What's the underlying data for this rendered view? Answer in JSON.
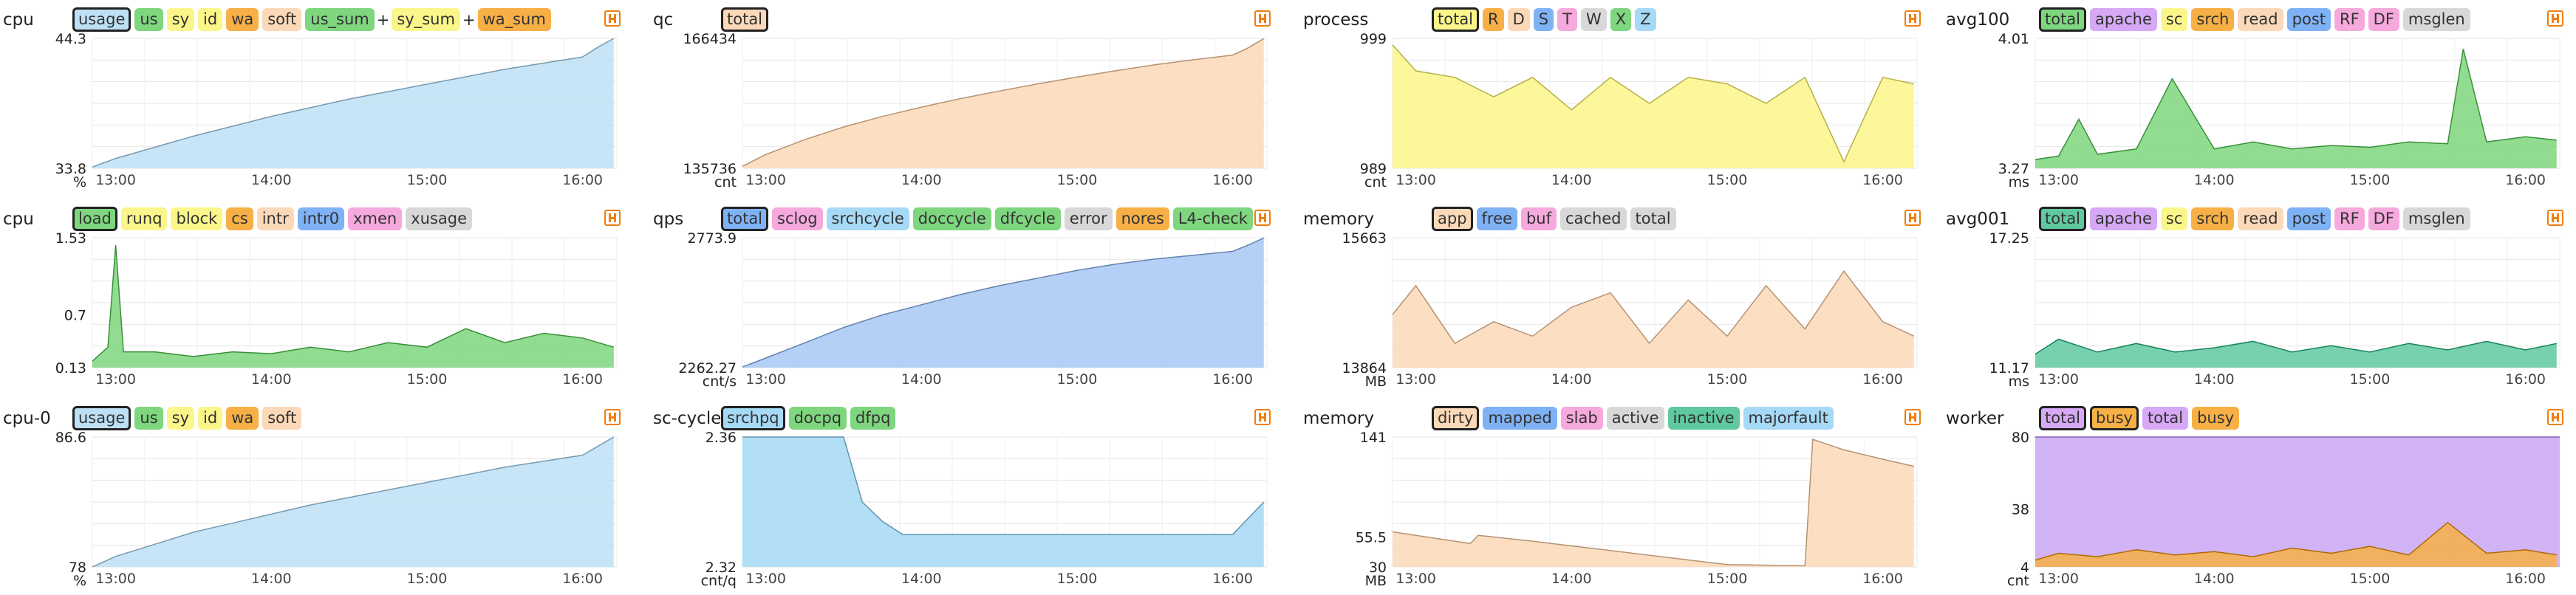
{
  "panels": [
    {
      "title": "cpu",
      "tags": [
        {
          "label": "usage",
          "color": "#bde0f5",
          "selected": true
        },
        {
          "label": "us",
          "color": "#7ed67e"
        },
        {
          "label": "sy",
          "color": "#fbf68a"
        },
        {
          "label": "id",
          "color": "#fbf68a"
        },
        {
          "label": "wa",
          "color": "#f7b046"
        },
        {
          "label": "soft",
          "color": "#fbd9b8"
        },
        {
          "label": "us_sum",
          "color": "#7ed67e"
        },
        {
          "sep": "+"
        },
        {
          "label": "sy_sum",
          "color": "#fbf68a"
        },
        {
          "sep": "+"
        },
        {
          "label": "wa_sum",
          "color": "#f7b046"
        }
      ]
    },
    {
      "title": "qc",
      "tags": [
        {
          "label": "total",
          "color": "#fbd9b8",
          "selected": true
        }
      ]
    },
    {
      "title": "process",
      "tags": [
        {
          "label": "total",
          "color": "#fbf68a",
          "selected": true
        },
        {
          "label": "R",
          "color": "#f7b046"
        },
        {
          "label": "D",
          "color": "#fbd9b8"
        },
        {
          "label": "S",
          "color": "#7fb2f5"
        },
        {
          "label": "T",
          "color": "#f5a9dc"
        },
        {
          "label": "W",
          "color": "#d8d8d8"
        },
        {
          "label": "X",
          "color": "#7ed67e"
        },
        {
          "label": "Z",
          "color": "#a6d9f5"
        }
      ]
    },
    {
      "title": "avg100",
      "tags": [
        {
          "label": "total",
          "color": "#7ed67e",
          "selected": true
        },
        {
          "label": "apache",
          "color": "#d6a8f5"
        },
        {
          "label": "sc",
          "color": "#fbf68a"
        },
        {
          "label": "srch",
          "color": "#f7b046"
        },
        {
          "label": "read",
          "color": "#fbd9b8"
        },
        {
          "label": "post",
          "color": "#7fb2f5"
        },
        {
          "label": "RF",
          "color": "#f5a9dc"
        },
        {
          "label": "DF",
          "color": "#f5a9dc"
        },
        {
          "label": "msglen",
          "color": "#d8d8d8"
        }
      ]
    },
    {
      "title": "cpu",
      "tags": [
        {
          "label": "load",
          "color": "#7ed67e",
          "selected": true
        },
        {
          "label": "runq",
          "color": "#fbf68a"
        },
        {
          "label": "block",
          "color": "#fbf68a"
        },
        {
          "label": "cs",
          "color": "#f7b046"
        },
        {
          "label": "intr",
          "color": "#fbd9b8"
        },
        {
          "label": "intr0",
          "color": "#7fb2f5"
        },
        {
          "label": "xmen",
          "color": "#f5a9dc"
        },
        {
          "label": "xusage",
          "color": "#d8d8d8"
        }
      ]
    },
    {
      "title": "qps",
      "tags": [
        {
          "label": "total",
          "color": "#7fb2f5",
          "selected": true
        },
        {
          "label": "sclog",
          "color": "#f5a9dc"
        },
        {
          "label": "srchcycle",
          "color": "#a6d9f5"
        },
        {
          "label": "doccycle",
          "color": "#7ed67e"
        },
        {
          "label": "dfcycle",
          "color": "#7ed67e"
        },
        {
          "label": "error",
          "color": "#d8d8d8"
        },
        {
          "label": "nores",
          "color": "#f7b046"
        },
        {
          "label": "L4-check",
          "color": "#7ed67e"
        }
      ]
    },
    {
      "title": "memory",
      "tags": [
        {
          "label": "app",
          "color": "#fbd9b8",
          "selected": true
        },
        {
          "label": "free",
          "color": "#7fb2f5"
        },
        {
          "label": "buf",
          "color": "#f5a9dc"
        },
        {
          "label": "cached",
          "color": "#d8d8d8"
        },
        {
          "label": "total",
          "color": "#d8d8d8"
        }
      ]
    },
    {
      "title": "avg001",
      "tags": [
        {
          "label": "total",
          "color": "#5fc9a0",
          "selected": true
        },
        {
          "label": "apache",
          "color": "#d6a8f5"
        },
        {
          "label": "sc",
          "color": "#fbf68a"
        },
        {
          "label": "srch",
          "color": "#f7b046"
        },
        {
          "label": "read",
          "color": "#fbd9b8"
        },
        {
          "label": "post",
          "color": "#7fb2f5"
        },
        {
          "label": "RF",
          "color": "#f5a9dc"
        },
        {
          "label": "DF",
          "color": "#f5a9dc"
        },
        {
          "label": "msglen",
          "color": "#d8d8d8"
        }
      ]
    },
    {
      "title": "cpu-0",
      "tags": [
        {
          "label": "usage",
          "color": "#bde0f5",
          "selected": true
        },
        {
          "label": "us",
          "color": "#7ed67e"
        },
        {
          "label": "sy",
          "color": "#fbf68a"
        },
        {
          "label": "id",
          "color": "#fbf68a"
        },
        {
          "label": "wa",
          "color": "#f7b046"
        },
        {
          "label": "soft",
          "color": "#fbd9b8"
        }
      ]
    },
    {
      "title": "sc-cycle",
      "tags": [
        {
          "label": "srchpq",
          "color": "#a6d9f5",
          "selected": true
        },
        {
          "label": "docpq",
          "color": "#7ed67e"
        },
        {
          "label": "dfpq",
          "color": "#7ed67e"
        }
      ]
    },
    {
      "title": "memory",
      "tags": [
        {
          "label": "dirty",
          "color": "#fbd9b8",
          "selected": true
        },
        {
          "label": "mapped",
          "color": "#7fb2f5"
        },
        {
          "label": "slab",
          "color": "#f5a9dc"
        },
        {
          "label": "active",
          "color": "#d8d8d8"
        },
        {
          "label": "inactive",
          "color": "#5fc9a0"
        },
        {
          "label": "majorfault",
          "color": "#a6d9f5"
        }
      ]
    },
    {
      "title": "worker",
      "tags": [
        {
          "label": "total",
          "color": "#d6a8f5",
          "selected": true
        },
        {
          "label": "busy",
          "color": "#f7b046",
          "selected": true
        },
        {
          "label": "total",
          "color": "#d6a8f5"
        },
        {
          "label": "busy",
          "color": "#f7b046"
        }
      ]
    }
  ],
  "chart_data": [
    {
      "type": "area",
      "unit": "%",
      "ylim": [
        33.8,
        44.3
      ],
      "yticks": [
        "44.3",
        "33.8"
      ],
      "xticks": [
        "13:00",
        "14:00",
        "15:00",
        "16:00"
      ],
      "xlim": [
        12.85,
        16.22
      ],
      "color": "#bde0f5",
      "series": [
        {
          "x": [
            12.85,
            13.0,
            13.25,
            13.5,
            13.75,
            14.0,
            14.25,
            14.5,
            14.75,
            15.0,
            15.25,
            15.5,
            15.75,
            16.0,
            16.1,
            16.2
          ],
          "values": [
            33.9,
            34.6,
            35.5,
            36.4,
            37.2,
            38.0,
            38.7,
            39.4,
            40.0,
            40.6,
            41.2,
            41.8,
            42.3,
            42.8,
            43.6,
            44.3
          ]
        }
      ]
    },
    {
      "type": "area",
      "unit": "cnt",
      "ylim": [
        135736,
        166434
      ],
      "yticks": [
        "166434",
        "135736"
      ],
      "xticks": [
        "13:00",
        "14:00",
        "15:00",
        "16:00"
      ],
      "xlim": [
        12.85,
        16.22
      ],
      "color": "#fbd9b8",
      "series": [
        {
          "x": [
            12.85,
            13.0,
            13.25,
            13.5,
            13.75,
            14.0,
            14.25,
            14.5,
            14.75,
            15.0,
            15.25,
            15.5,
            15.75,
            16.0,
            16.1,
            16.2
          ],
          "values": [
            136200,
            139000,
            142500,
            145500,
            148000,
            150200,
            152200,
            154000,
            155700,
            157300,
            158800,
            160200,
            161400,
            162500,
            164200,
            166400
          ]
        }
      ]
    },
    {
      "type": "area",
      "unit": "cnt",
      "ylim": [
        989,
        999
      ],
      "yticks": [
        "999",
        "989"
      ],
      "xticks": [
        "13:00",
        "14:00",
        "15:00",
        "16:00"
      ],
      "xlim": [
        12.85,
        16.22
      ],
      "color": "#fbf68a",
      "series": [
        {
          "x": [
            12.85,
            13.0,
            13.25,
            13.5,
            13.75,
            14.0,
            14.25,
            14.5,
            14.75,
            15.0,
            15.25,
            15.5,
            15.75,
            16.0,
            16.2
          ],
          "values": [
            998.5,
            996.5,
            996,
            994.5,
            996,
            993.5,
            996,
            994,
            996,
            995.5,
            994,
            996,
            989.5,
            996,
            995.5
          ]
        }
      ]
    },
    {
      "type": "area",
      "unit": "ms",
      "ylim": [
        3.27,
        4.01
      ],
      "yticks": [
        "4.01",
        "3.27"
      ],
      "xticks": [
        "13:00",
        "14:00",
        "15:00",
        "16:00"
      ],
      "xlim": [
        12.85,
        16.22
      ],
      "color": "#7ed67e",
      "series": [
        {
          "x": [
            12.85,
            13.0,
            13.13,
            13.25,
            13.5,
            13.73,
            14.0,
            14.25,
            14.5,
            14.75,
            15.0,
            15.25,
            15.5,
            15.6,
            15.75,
            16.0,
            16.2
          ],
          "values": [
            3.32,
            3.34,
            3.55,
            3.35,
            3.38,
            3.78,
            3.38,
            3.42,
            3.38,
            3.4,
            3.39,
            3.42,
            3.41,
            3.95,
            3.42,
            3.45,
            3.43
          ]
        }
      ]
    },
    {
      "type": "area",
      "unit": "",
      "ylim": [
        0.13,
        1.53
      ],
      "yticks": [
        "1.53",
        "0.7",
        "0.13"
      ],
      "xticks": [
        "13:00",
        "14:00",
        "15:00",
        "16:00"
      ],
      "xlim": [
        12.85,
        16.22
      ],
      "color": "#7ed67e",
      "series": [
        {
          "x": [
            12.85,
            12.95,
            13.0,
            13.05,
            13.25,
            13.5,
            13.75,
            14.0,
            14.25,
            14.5,
            14.75,
            15.0,
            15.25,
            15.5,
            15.75,
            16.0,
            16.2
          ],
          "values": [
            0.2,
            0.35,
            1.45,
            0.3,
            0.3,
            0.25,
            0.3,
            0.28,
            0.35,
            0.3,
            0.4,
            0.35,
            0.55,
            0.4,
            0.5,
            0.45,
            0.35
          ]
        }
      ]
    },
    {
      "type": "area",
      "unit": "cnt/s",
      "ylim": [
        2262.27,
        2773.9
      ],
      "yticks": [
        "2773.9",
        "2262.27"
      ],
      "xticks": [
        "13:00",
        "14:00",
        "15:00",
        "16:00"
      ],
      "xlim": [
        12.85,
        16.22
      ],
      "color": "#a8c8f5",
      "series": [
        {
          "x": [
            12.85,
            13.0,
            13.25,
            13.5,
            13.75,
            14.0,
            14.25,
            14.5,
            14.75,
            15.0,
            15.25,
            15.5,
            15.75,
            16.0,
            16.1,
            16.2
          ],
          "values": [
            2265,
            2300,
            2360,
            2420,
            2470,
            2510,
            2550,
            2585,
            2615,
            2645,
            2670,
            2690,
            2705,
            2720,
            2745,
            2773
          ]
        }
      ]
    },
    {
      "type": "area",
      "unit": "MB",
      "ylim": [
        13864,
        15663
      ],
      "yticks": [
        "15663",
        "13864"
      ],
      "xticks": [
        "13:00",
        "14:00",
        "15:00",
        "16:00"
      ],
      "xlim": [
        12.85,
        16.22
      ],
      "color": "#fbd9b8",
      "series": [
        {
          "x": [
            12.85,
            13.0,
            13.25,
            13.5,
            13.75,
            14.0,
            14.25,
            14.5,
            14.75,
            15.0,
            15.25,
            15.5,
            15.75,
            16.0,
            16.2
          ],
          "values": [
            14600,
            15000,
            14200,
            14500,
            14300,
            14700,
            14900,
            14200,
            14800,
            14300,
            15000,
            14400,
            15200,
            14500,
            14300
          ]
        }
      ]
    },
    {
      "type": "area",
      "unit": "ms",
      "ylim": [
        11.17,
        17.25
      ],
      "yticks": [
        "17.25",
        "11.17"
      ],
      "xticks": [
        "13:00",
        "14:00",
        "15:00",
        "16:00"
      ],
      "xlim": [
        12.85,
        16.22
      ],
      "color": "#5fc9a0",
      "series": [
        {
          "x": [
            12.85,
            13.0,
            13.25,
            13.5,
            13.75,
            14.0,
            14.25,
            14.5,
            14.75,
            15.0,
            15.25,
            15.5,
            15.75,
            16.0,
            16.2
          ],
          "values": [
            11.8,
            12.5,
            11.9,
            12.3,
            11.9,
            12.1,
            12.4,
            11.9,
            12.2,
            11.9,
            12.3,
            12.0,
            12.4,
            12.0,
            12.3
          ]
        }
      ]
    },
    {
      "type": "area",
      "unit": "%",
      "ylim": [
        78,
        86.6
      ],
      "yticks": [
        "86.6",
        "78"
      ],
      "xticks": [
        "13:00",
        "14:00",
        "15:00",
        "16:00"
      ],
      "xlim": [
        12.85,
        16.22
      ],
      "color": "#bde0f5",
      "series": [
        {
          "x": [
            12.85,
            13.0,
            13.25,
            13.5,
            13.75,
            14.0,
            14.25,
            14.5,
            14.75,
            15.0,
            15.25,
            15.5,
            15.75,
            16.0,
            16.1,
            16.2
          ],
          "values": [
            78.0,
            78.7,
            79.5,
            80.3,
            80.9,
            81.5,
            82.1,
            82.6,
            83.1,
            83.6,
            84.1,
            84.6,
            85.0,
            85.4,
            86.0,
            86.6
          ]
        }
      ]
    },
    {
      "type": "area",
      "unit": "cnt/q",
      "ylim": [
        2.32,
        2.36
      ],
      "yticks": [
        "2.36",
        "2.32"
      ],
      "xticks": [
        "13:00",
        "14:00",
        "15:00",
        "16:00"
      ],
      "xlim": [
        12.85,
        16.22
      ],
      "color": "#a6d9f5",
      "series": [
        {
          "x": [
            12.85,
            13.5,
            13.62,
            13.75,
            13.88,
            14.0,
            14.25,
            14.5,
            14.75,
            15.0,
            15.25,
            15.5,
            15.75,
            16.0,
            16.2
          ],
          "values": [
            2.36,
            2.36,
            2.34,
            2.334,
            2.33,
            2.33,
            2.33,
            2.33,
            2.33,
            2.33,
            2.33,
            2.33,
            2.33,
            2.33,
            2.34
          ]
        }
      ]
    },
    {
      "type": "area",
      "unit": "MB",
      "ylim": [
        30,
        141
      ],
      "yticks": [
        "141",
        "55.5",
        "30"
      ],
      "xticks": [
        "13:00",
        "14:00",
        "15:00",
        "16:00"
      ],
      "xlim": [
        12.85,
        16.22
      ],
      "color": "#fbd9b8",
      "series": [
        {
          "x": [
            12.85,
            13.0,
            13.35,
            13.4,
            13.75,
            14.0,
            14.5,
            14.75,
            15.0,
            15.5,
            15.55,
            15.75,
            16.0,
            16.2
          ],
          "values": [
            60,
            57,
            50,
            57,
            52,
            48,
            40,
            36,
            32,
            31,
            139,
            130,
            122,
            116
          ]
        }
      ]
    },
    {
      "type": "area",
      "unit": "cnt",
      "ylim": [
        4,
        80
      ],
      "yticks": [
        "80",
        "38",
        "4"
      ],
      "xticks": [
        "13:00",
        "14:00",
        "15:00",
        "16:00"
      ],
      "xlim": [
        12.85,
        16.22
      ],
      "series": [
        {
          "name": "total",
          "color": "#c9a6f5",
          "x": [
            12.85,
            16.22
          ],
          "values": [
            80,
            80
          ]
        },
        {
          "name": "busy",
          "color": "#f7b046",
          "x": [
            12.85,
            13.0,
            13.25,
            13.5,
            13.75,
            14.0,
            14.25,
            14.5,
            14.75,
            15.0,
            15.25,
            15.5,
            15.75,
            16.0,
            16.2
          ],
          "values": [
            8,
            12,
            10,
            14,
            11,
            13,
            10,
            15,
            12,
            16,
            11,
            30,
            12,
            14,
            11
          ]
        }
      ]
    }
  ]
}
